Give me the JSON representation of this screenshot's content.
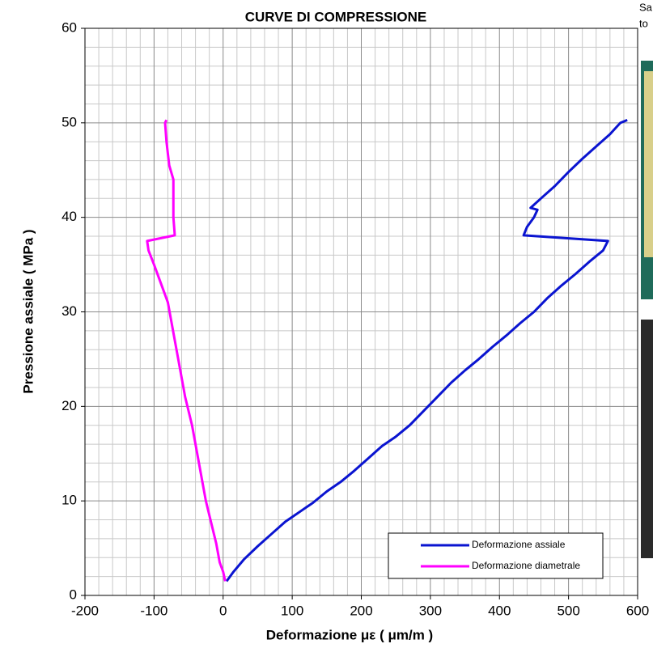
{
  "chart_data": {
    "type": "line",
    "title": "CURVE DI COMPRESSIONE",
    "x_label": "Deformazione  με ( μm/m )",
    "y_label": "Pressione assiale   ( MPa )",
    "xlim": [
      -200,
      600
    ],
    "xticks": [
      -200,
      -100,
      0,
      100,
      200,
      300,
      400,
      500,
      600
    ],
    "ylim": [
      0,
      60
    ],
    "yticks": [
      0,
      10,
      20,
      30,
      40,
      50,
      60
    ],
    "grid": true,
    "legend": "lower right",
    "series": [
      {
        "name": "Deformazione assiale",
        "color": "#0a14d0",
        "x": [
          5,
          15,
          30,
          50,
          70,
          90,
          110,
          130,
          150,
          170,
          190,
          210,
          230,
          250,
          270,
          290,
          310,
          330,
          350,
          370,
          390,
          410,
          430,
          450,
          470,
          490,
          510,
          530,
          550,
          557,
          435,
          440,
          450,
          455,
          445,
          460,
          480,
          500,
          520,
          540,
          560,
          575,
          585
        ],
        "values": [
          1.5,
          2.5,
          3.8,
          5.2,
          6.5,
          7.8,
          8.8,
          9.8,
          11,
          12,
          13.2,
          14.5,
          15.8,
          16.8,
          18,
          19.5,
          21,
          22.5,
          23.8,
          25,
          26.3,
          27.5,
          28.8,
          30,
          31.5,
          32.8,
          34,
          35.3,
          36.5,
          37.5,
          38.1,
          39,
          40,
          40.8,
          41,
          42,
          43.3,
          44.8,
          46.2,
          47.5,
          48.8,
          50,
          50.3
        ]
      },
      {
        "name": "Deformazione diametrale",
        "color": "#ff00ff",
        "x": [
          3,
          0,
          -5,
          -10,
          -15,
          -20,
          -25,
          -30,
          -35,
          -40,
          -45,
          -50,
          -55,
          -60,
          -65,
          -70,
          -75,
          -80,
          -90,
          -100,
          -108,
          -110,
          -70,
          -72,
          -72,
          -72,
          -78,
          -82,
          -84,
          -82
        ],
        "values": [
          1.5,
          2.5,
          3.5,
          5.5,
          7,
          8.5,
          10,
          12,
          14,
          16,
          18,
          19.5,
          21,
          23,
          25,
          27,
          29,
          31,
          33,
          35,
          36.5,
          37.5,
          38.1,
          40,
          42,
          44,
          45.5,
          48,
          50,
          50.3
        ]
      }
    ]
  },
  "side_text": [
    "Sa",
    "to"
  ]
}
